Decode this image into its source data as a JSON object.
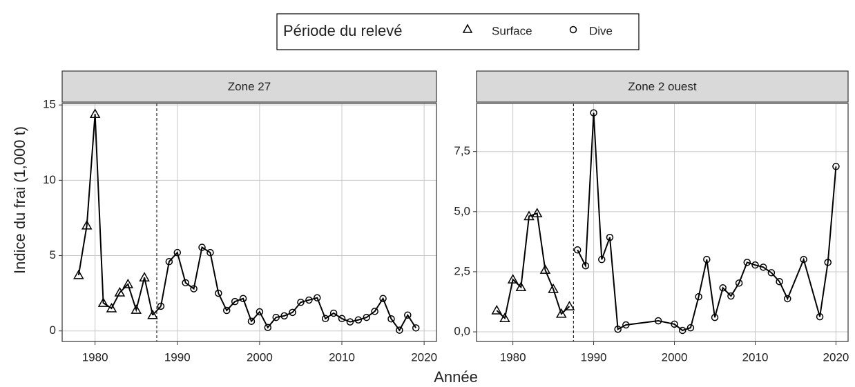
{
  "legend_title": "Période du relevé",
  "xlabel": "Année",
  "ylabel": "Indice du frai (1,000 t)",
  "chart_data": [
    {
      "type": "line",
      "title": "Zone 27",
      "xlim": [
        1976,
        2021.5
      ],
      "ylim": [
        -0.7,
        15.1
      ],
      "xticks": [
        1980,
        1990,
        2000,
        2010,
        2020
      ],
      "yticks": [
        0,
        5,
        10,
        15
      ],
      "grid": true,
      "vline": 1987.5,
      "connect_series": true,
      "series": [
        {
          "name": "Surface",
          "color": "#000000",
          "marker": "triangle",
          "x": [
            1978,
            1979,
            1980,
            1981,
            1982,
            1983,
            1984,
            1985,
            1986,
            1987
          ],
          "values": [
            3.7,
            7.0,
            14.4,
            1.86,
            1.5,
            2.55,
            3.1,
            1.4,
            3.55,
            1.05
          ]
        },
        {
          "name": "Dive",
          "color": "#000000",
          "marker": "circle",
          "x": [
            1988,
            1989,
            1990,
            1991,
            1992,
            1993,
            1994,
            1995,
            1996,
            1997,
            1998,
            1999,
            2000,
            2001,
            2002,
            2003,
            2004,
            2005,
            2006,
            2007,
            2008,
            2009,
            2010,
            2011,
            2012,
            2013,
            2014,
            2015,
            2016,
            2017,
            2018,
            2019
          ],
          "values": [
            1.64,
            4.6,
            5.2,
            3.2,
            2.8,
            5.55,
            5.2,
            2.5,
            1.36,
            1.95,
            2.15,
            0.64,
            1.27,
            0.23,
            0.9,
            1.0,
            1.23,
            1.9,
            2.05,
            2.2,
            0.82,
            1.18,
            0.82,
            0.6,
            0.73,
            0.9,
            1.3,
            2.15,
            0.8,
            0.05,
            1.05,
            0.2
          ]
        }
      ]
    },
    {
      "type": "line",
      "title": "Zone 2 ouest",
      "xlim": [
        1975.5,
        2021.5
      ],
      "ylim": [
        -0.4,
        9.5
      ],
      "xticks": [
        1980,
        1990,
        2000,
        2010,
        2020
      ],
      "yticks": [
        {
          "value": 0,
          "label": "0,0"
        },
        {
          "value": 2.5,
          "label": "2,5"
        },
        {
          "value": 5,
          "label": "5,0"
        },
        {
          "value": 7.5,
          "label": "7,5"
        }
      ],
      "grid": true,
      "vline": 1987.5,
      "connect_series": false,
      "series": [
        {
          "name": "Surface",
          "color": "#000000",
          "marker": "triangle",
          "x": [
            1978,
            1979,
            1980,
            1981,
            1982,
            1983,
            1984,
            1985,
            1986,
            1987
          ],
          "values": [
            0.89,
            0.57,
            2.18,
            1.86,
            4.81,
            4.93,
            2.58,
            1.78,
            0.75,
            1.06
          ]
        },
        {
          "name": "Dive",
          "color": "#000000",
          "marker": "circle",
          "x": [
            1988,
            1989,
            1990,
            1991,
            1992,
            1993,
            1994,
            1998,
            2000,
            2001,
            2002,
            2003,
            2004,
            2005,
            2006,
            2007,
            2008,
            2009,
            2010,
            2011,
            2012,
            2013,
            2014,
            2016,
            2018,
            2019,
            2020
          ],
          "values": [
            3.41,
            2.75,
            9.11,
            3.01,
            3.93,
            0.11,
            0.29,
            0.46,
            0.32,
            0.06,
            0.17,
            1.46,
            3.01,
            0.6,
            1.83,
            1.49,
            2.03,
            2.89,
            2.78,
            2.69,
            2.46,
            2.09,
            1.38,
            3.01,
            0.63,
            2.89,
            6.88
          ]
        }
      ]
    }
  ]
}
